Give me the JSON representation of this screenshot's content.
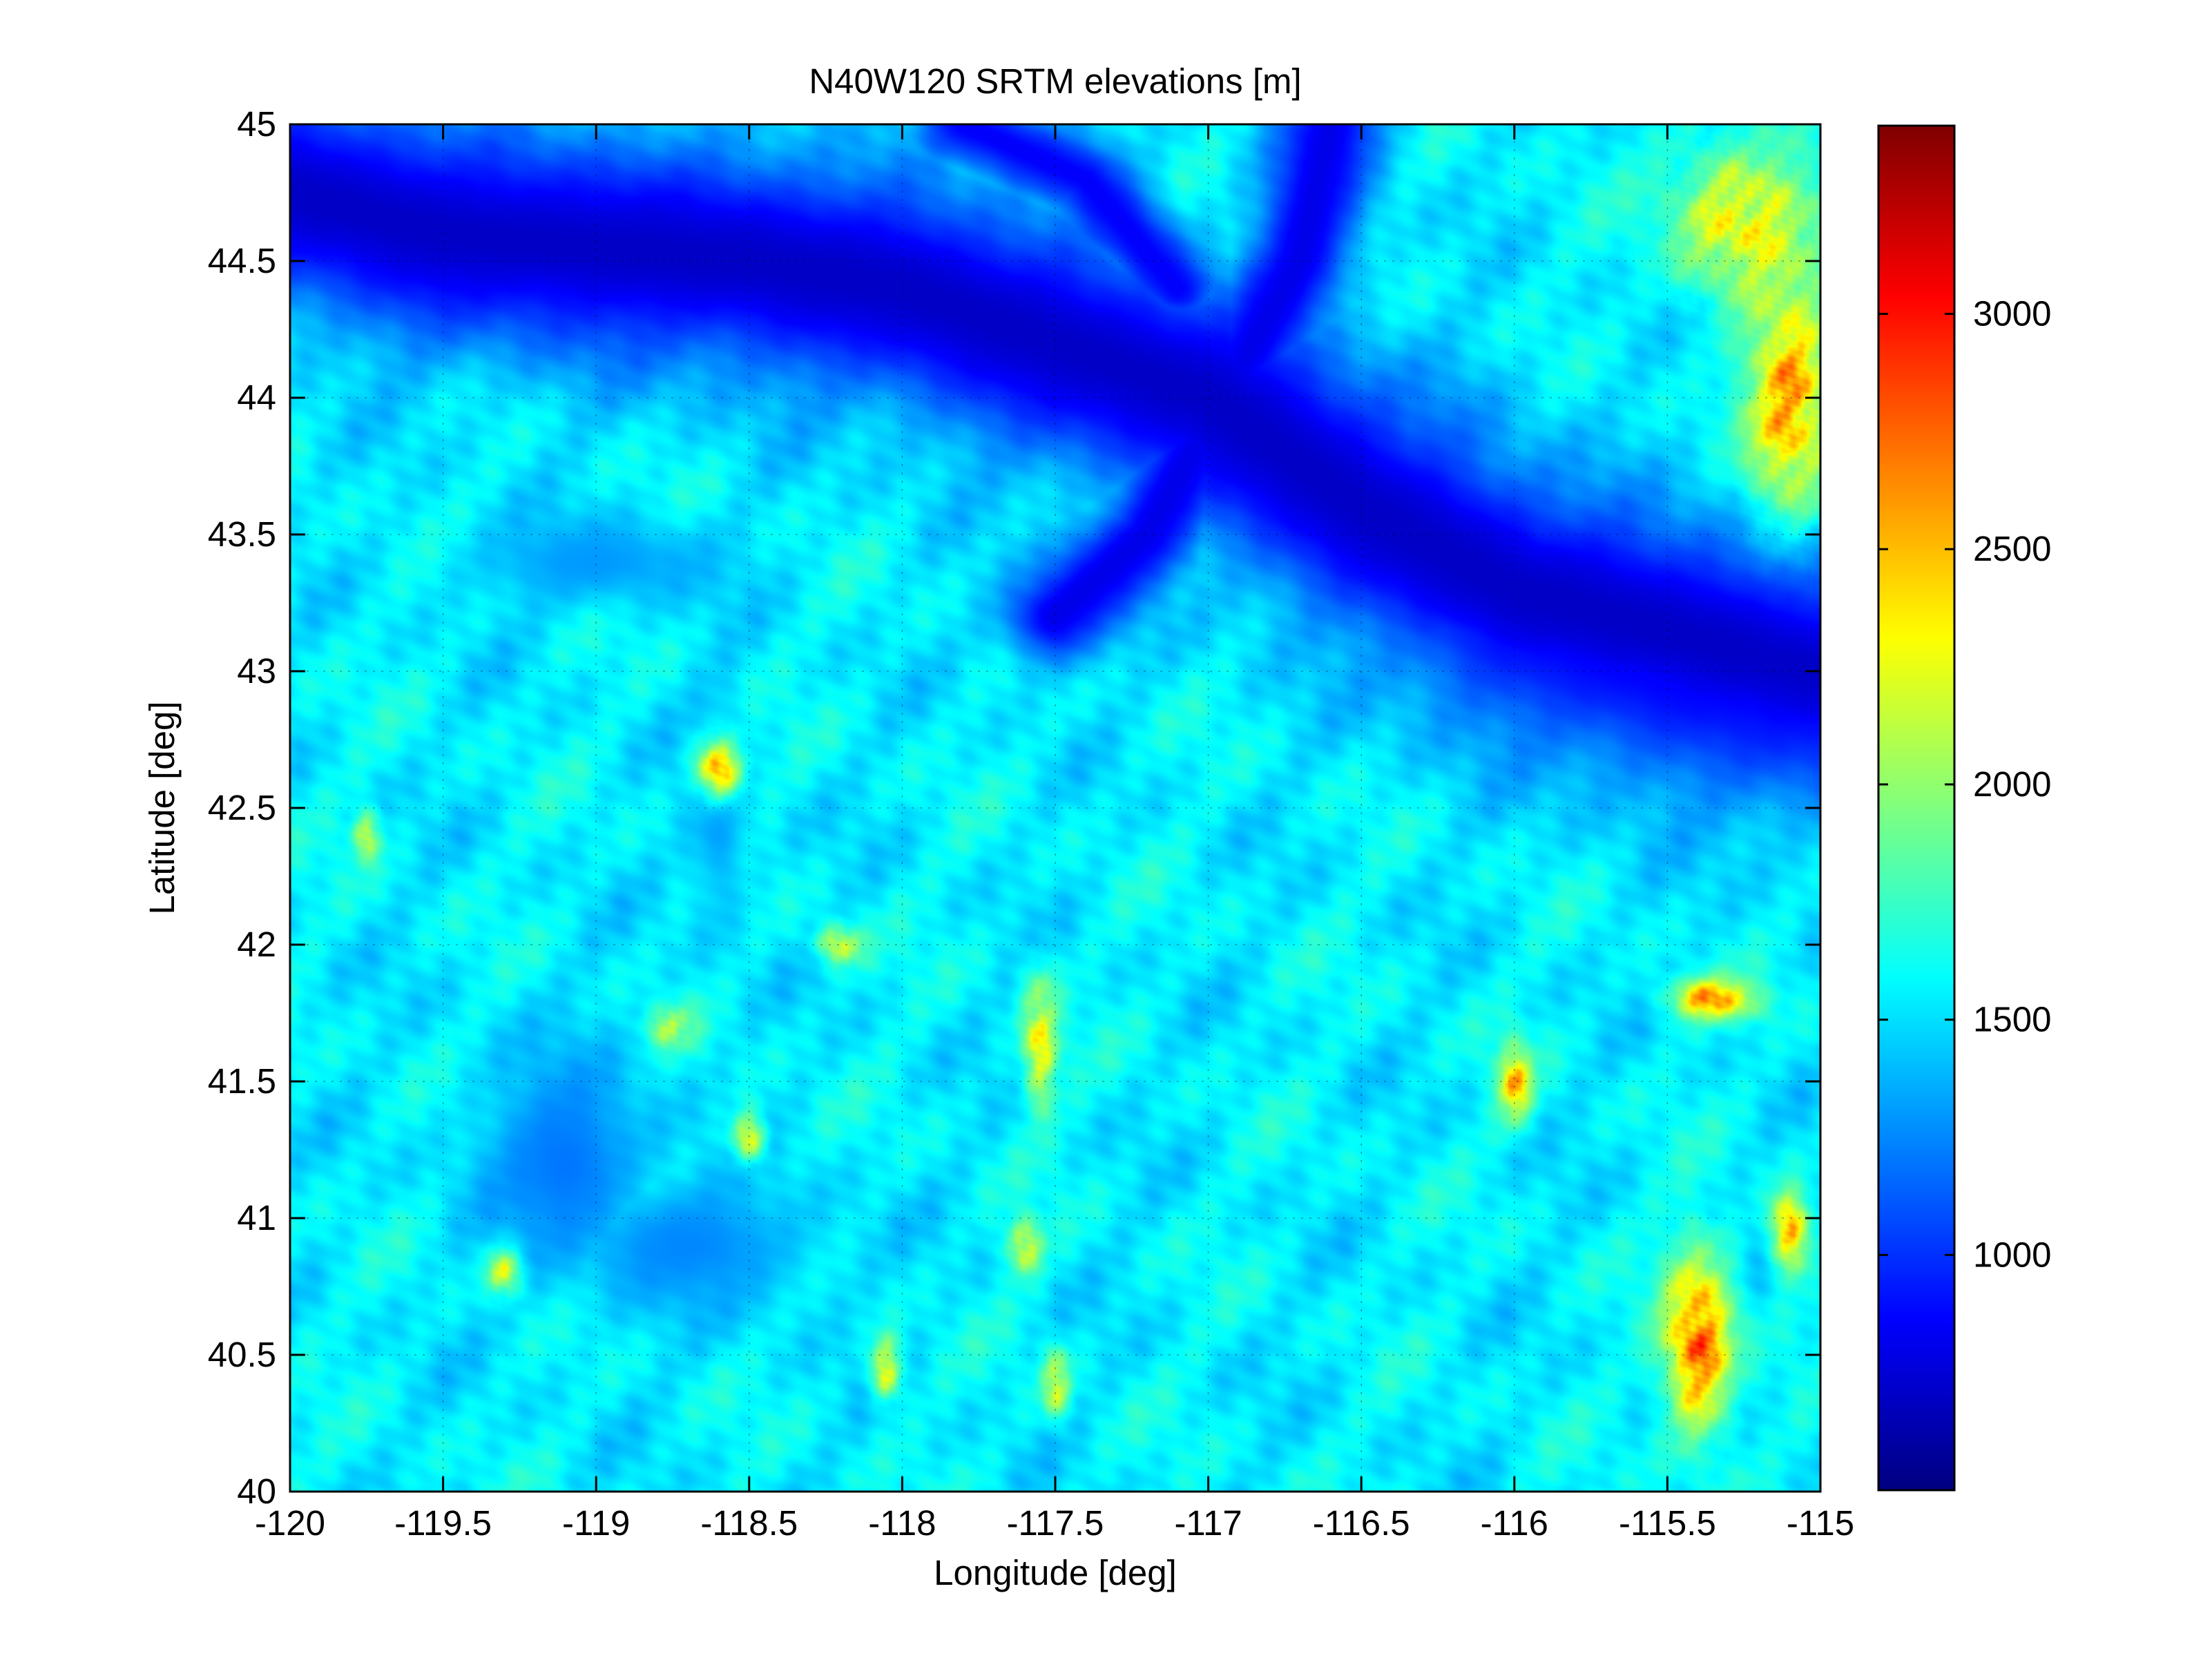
{
  "chart_data": {
    "type": "heatmap",
    "title": "N40W120 SRTM elevations [m]",
    "xlabel": "Longitude [deg]",
    "ylabel": "Latitude [deg]",
    "xlim": [
      -120,
      -115
    ],
    "ylim": [
      40,
      45
    ],
    "x_ticks": [
      -120,
      -119.5,
      -119,
      -118.5,
      -118,
      -117.5,
      -117,
      -116.5,
      -116,
      -115.5,
      -115
    ],
    "x_tick_labels": [
      "-120",
      "-119.5",
      "-119",
      "-118.5",
      "-118",
      "-117.5",
      "-117",
      "-116.5",
      "-116",
      "-115.5",
      "-115"
    ],
    "y_ticks": [
      40,
      40.5,
      41,
      41.5,
      42,
      42.5,
      43,
      43.5,
      44,
      44.5,
      45
    ],
    "y_tick_labels": [
      "40",
      "40.5",
      "41",
      "41.5",
      "42",
      "42.5",
      "43",
      "43.5",
      "44",
      "44.5",
      "45"
    ],
    "grid": true,
    "colormap": "jet",
    "colorbar": {
      "range": [
        500,
        3400
      ],
      "ticks": [
        1000,
        1500,
        2000,
        2500,
        3000
      ],
      "tick_labels": [
        "1000",
        "1500",
        "2000",
        "2500",
        "3000"
      ]
    },
    "features": [
      {
        "type": "valley",
        "name_hint": "low",
        "path": [
          [
            -120,
            44.75
          ],
          [
            -119.5,
            44.6
          ],
          [
            -119,
            44.55
          ],
          [
            -118.5,
            44.5
          ],
          [
            -118,
            44.4
          ],
          [
            -117.5,
            44.2
          ],
          [
            -117,
            44.0
          ],
          [
            -116.5,
            43.6
          ],
          [
            -116,
            43.3
          ],
          [
            -115.5,
            43.15
          ],
          [
            -115,
            43.0
          ]
        ],
        "elev": 700,
        "width": 0.28
      },
      {
        "type": "valley",
        "path": [
          [
            -117.5,
            43.2
          ],
          [
            -117.2,
            43.5
          ],
          [
            -117,
            43.9
          ],
          [
            -116.7,
            44.5
          ],
          [
            -116.6,
            45.0
          ]
        ],
        "elev": 800,
        "width": 0.12
      },
      {
        "type": "valley",
        "path": [
          [
            -117.8,
            45.0
          ],
          [
            -117.4,
            44.8
          ],
          [
            -117.1,
            44.4
          ]
        ],
        "elev": 850,
        "width": 0.1
      },
      {
        "type": "valley",
        "path": [
          [
            -116.4,
            43.6
          ],
          [
            -116,
            43.2
          ],
          [
            -115.5,
            43.0
          ],
          [
            -115,
            42.9
          ]
        ],
        "elev": 850,
        "width": 0.3
      },
      {
        "type": "basin",
        "center": [
          -119.1,
          41.2
        ],
        "radius": [
          0.35,
          0.5
        ],
        "elev": 1200
      },
      {
        "type": "basin",
        "center": [
          -118.7,
          40.9
        ],
        "radius": [
          0.5,
          0.3
        ],
        "elev": 1250
      },
      {
        "type": "basin",
        "center": [
          -118.6,
          42.5
        ],
        "radius": [
          0.12,
          0.5
        ],
        "elev": 1300
      },
      {
        "type": "basin",
        "center": [
          -119.0,
          43.4
        ],
        "radius": [
          0.5,
          0.2
        ],
        "elev": 1300
      },
      {
        "type": "peak",
        "center": [
          -118.6,
          42.65
        ],
        "radius": [
          0.08,
          0.12
        ],
        "elev": 2950
      },
      {
        "type": "peak",
        "center": [
          -115.4,
          40.55
        ],
        "radius": [
          0.12,
          0.35
        ],
        "elev": 3200
      },
      {
        "type": "peak",
        "center": [
          -115.1,
          40.95
        ],
        "radius": [
          0.06,
          0.15
        ],
        "elev": 3100
      },
      {
        "type": "peak",
        "center": [
          -115.35,
          41.8
        ],
        "radius": [
          0.15,
          0.08
        ],
        "elev": 3000
      },
      {
        "type": "peak",
        "center": [
          -115.1,
          44.0
        ],
        "radius": [
          0.15,
          0.45
        ],
        "elev": 3000
      },
      {
        "type": "peak",
        "center": [
          -115.25,
          44.65
        ],
        "radius": [
          0.25,
          0.3
        ],
        "elev": 2700
      },
      {
        "type": "peak",
        "center": [
          -116.0,
          41.5
        ],
        "radius": [
          0.06,
          0.15
        ],
        "elev": 2900
      },
      {
        "type": "peak",
        "center": [
          -117.55,
          41.65
        ],
        "radius": [
          0.06,
          0.25
        ],
        "elev": 2700
      },
      {
        "type": "peak",
        "center": [
          -117.6,
          40.9
        ],
        "radius": [
          0.06,
          0.1
        ],
        "elev": 2700
      },
      {
        "type": "peak",
        "center": [
          -117.5,
          40.4
        ],
        "radius": [
          0.05,
          0.12
        ],
        "elev": 2600
      },
      {
        "type": "peak",
        "center": [
          -118.05,
          40.45
        ],
        "radius": [
          0.05,
          0.12
        ],
        "elev": 2700
      },
      {
        "type": "peak",
        "center": [
          -118.2,
          42.0
        ],
        "radius": [
          0.08,
          0.08
        ],
        "elev": 2500
      },
      {
        "type": "peak",
        "center": [
          -118.5,
          41.3
        ],
        "radius": [
          0.06,
          0.1
        ],
        "elev": 2500
      },
      {
        "type": "peak",
        "center": [
          -118.75,
          41.7
        ],
        "radius": [
          0.08,
          0.08
        ],
        "elev": 2500
      },
      {
        "type": "peak",
        "center": [
          -119.3,
          40.8
        ],
        "radius": [
          0.06,
          0.1
        ],
        "elev": 2500
      },
      {
        "type": "peak",
        "center": [
          -119.75,
          42.4
        ],
        "radius": [
          0.05,
          0.1
        ],
        "elev": 2400
      }
    ]
  }
}
